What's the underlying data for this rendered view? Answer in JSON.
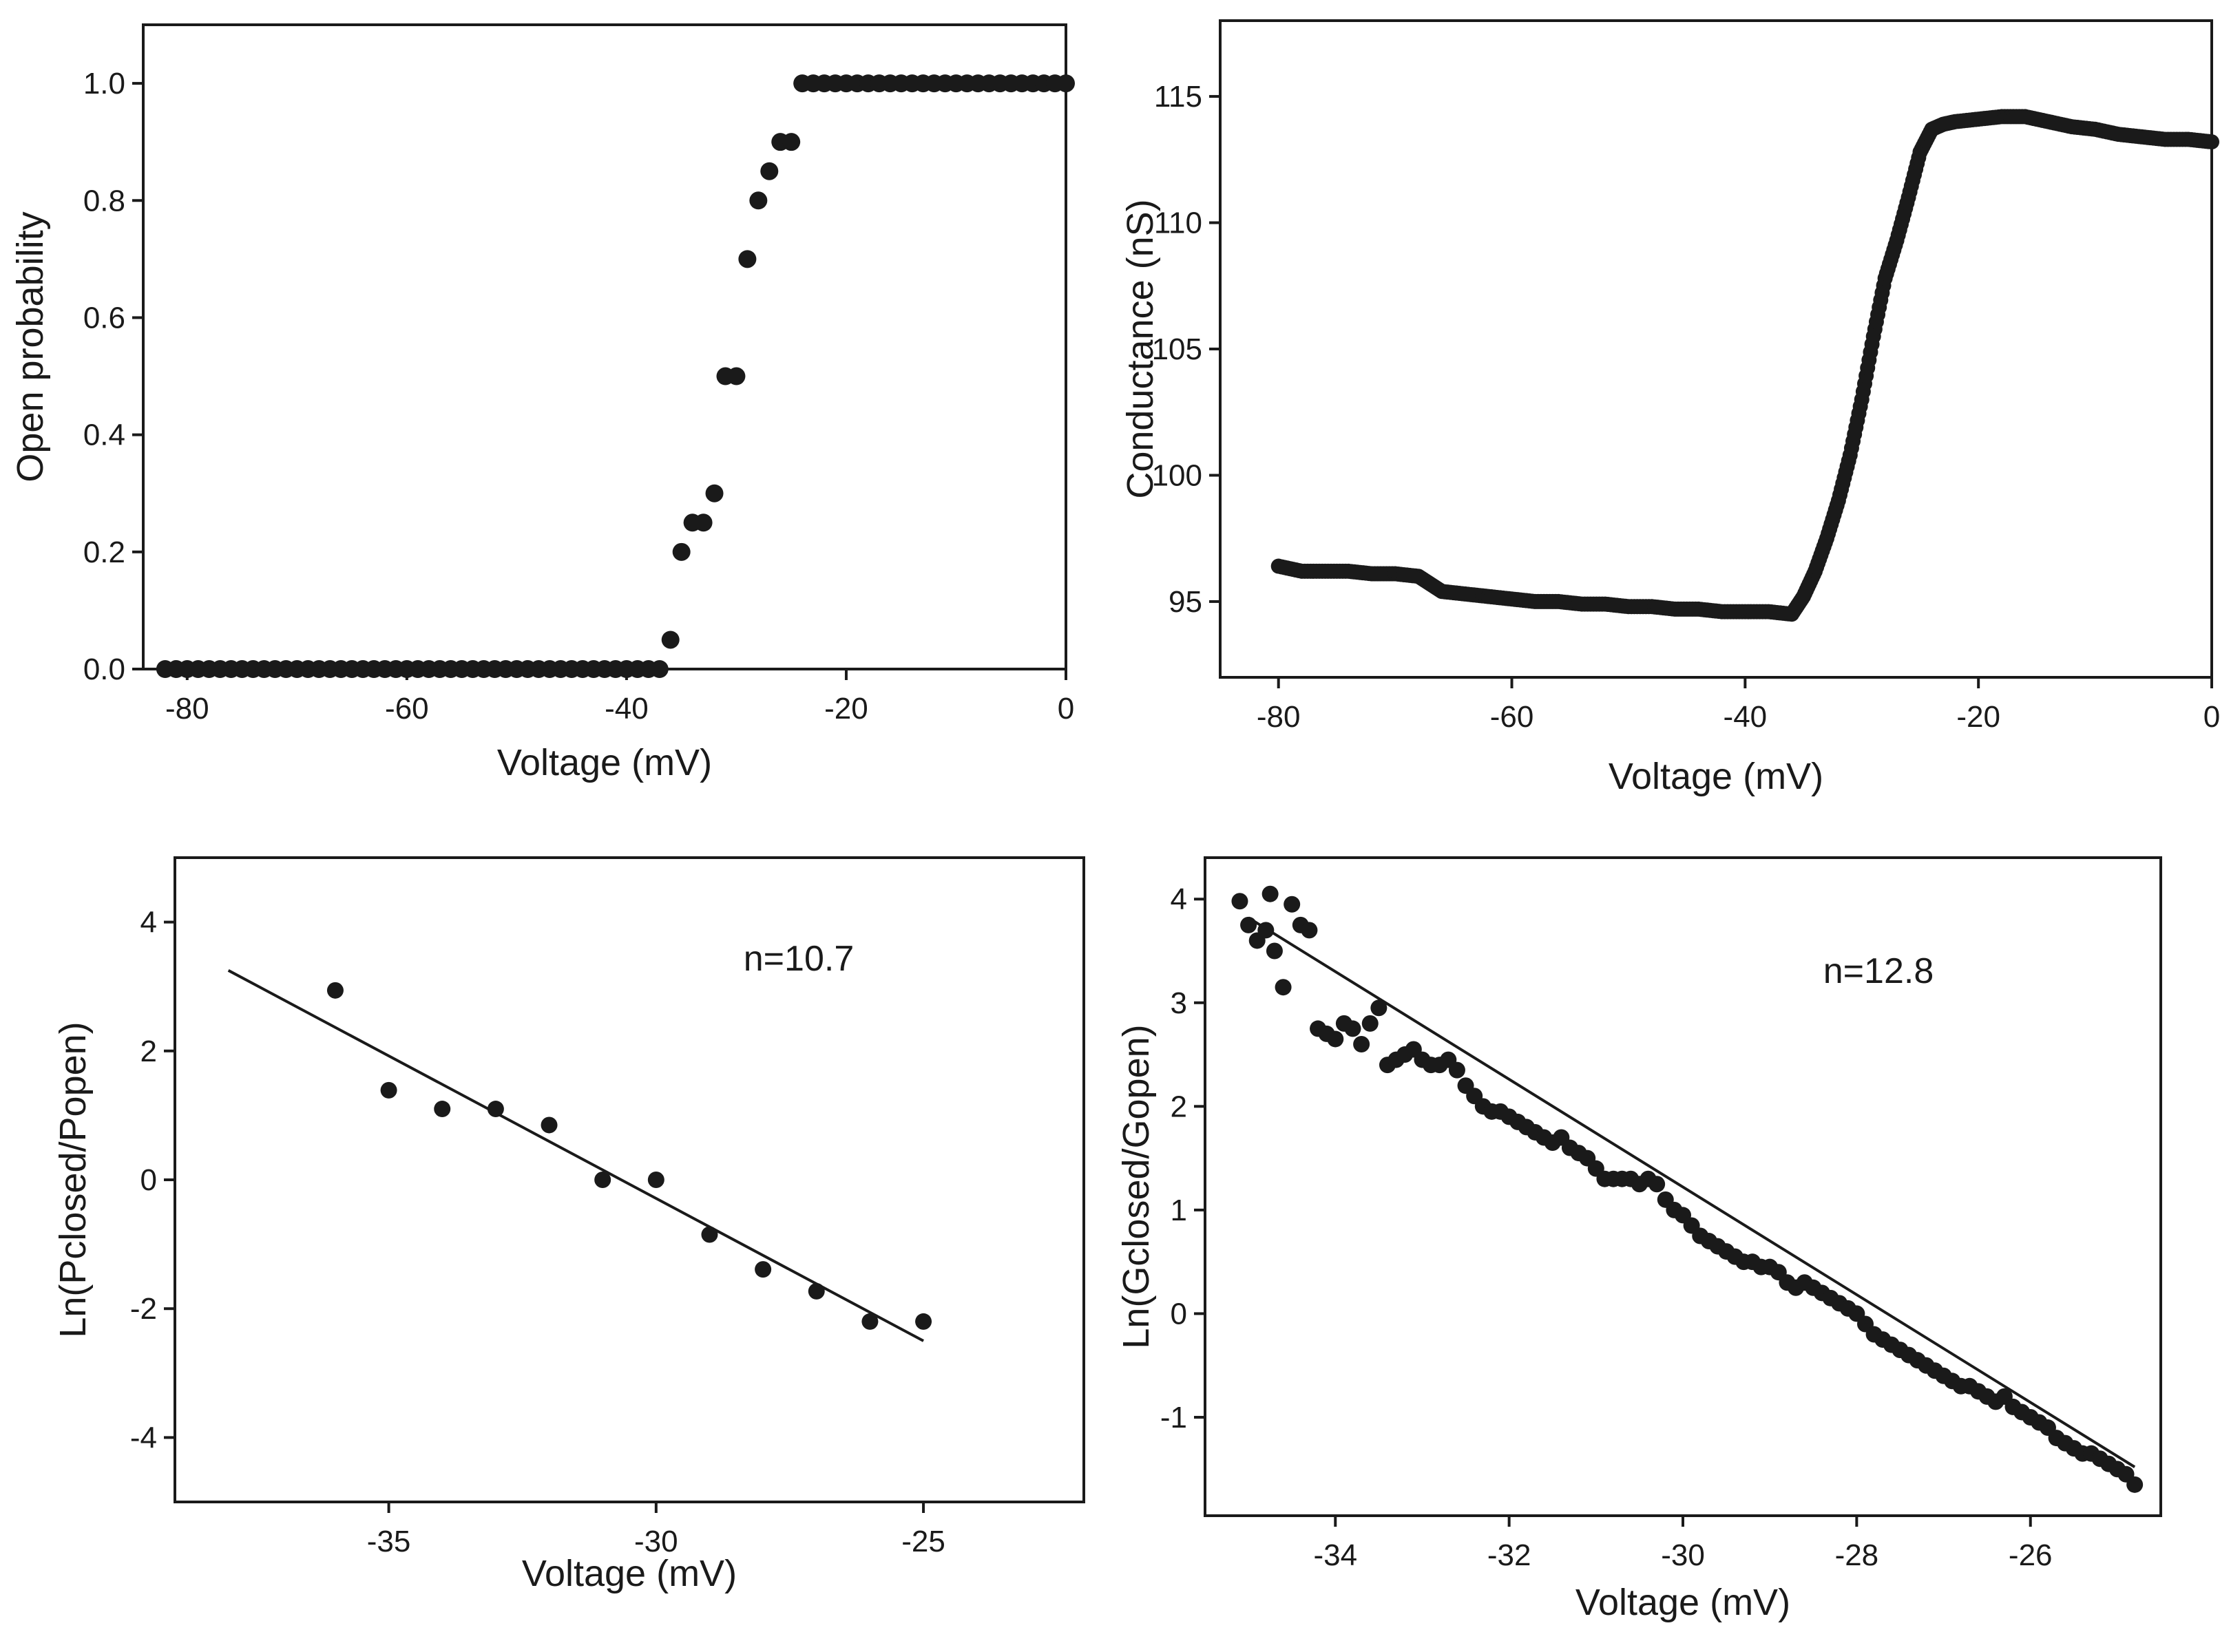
{
  "colors": {
    "ink": "#1a1a1a",
    "background": "#ffffff"
  },
  "chart_data": [
    {
      "id": "open-probability",
      "type": "scatter",
      "title": "",
      "xlabel": "Voltage (mV)",
      "ylabel": "Open probability",
      "xlim": [
        -84,
        0
      ],
      "ylim": [
        0,
        1.1
      ],
      "xticks": [
        -80,
        -60,
        -40,
        -20,
        0
      ],
      "yticks": [
        0.0,
        0.2,
        0.4,
        0.6,
        0.8,
        1.0
      ],
      "xtick_labels": [
        "-80",
        "-60",
        "-40",
        "-20",
        "0"
      ],
      "ytick_labels": [
        "0.0",
        "0.2",
        "0.4",
        "0.6",
        "0.8",
        "1.0"
      ],
      "grid": false,
      "annotation": "",
      "points_note": "every 1 mV from -82 to 0",
      "x": [
        -82,
        -81,
        -80,
        -79,
        -78,
        -77,
        -76,
        -75,
        -74,
        -73,
        -72,
        -71,
        -70,
        -69,
        -68,
        -67,
        -66,
        -65,
        -64,
        -63,
        -62,
        -61,
        -60,
        -59,
        -58,
        -57,
        -56,
        -55,
        -54,
        -53,
        -52,
        -51,
        -50,
        -49,
        -48,
        -47,
        -46,
        -45,
        -44,
        -43,
        -42,
        -41,
        -40,
        -39,
        -38,
        -37,
        -36,
        -35,
        -34,
        -33,
        -32,
        -31,
        -30,
        -29,
        -28,
        -27,
        -26,
        -25,
        -24,
        -23,
        -22,
        -21,
        -20,
        -19,
        -18,
        -17,
        -16,
        -15,
        -14,
        -13,
        -12,
        -11,
        -10,
        -9,
        -8,
        -7,
        -6,
        -5,
        -4,
        -3,
        -2,
        -1,
        0
      ],
      "y": [
        0,
        0,
        0,
        0,
        0,
        0,
        0,
        0,
        0,
        0,
        0,
        0,
        0,
        0,
        0,
        0,
        0,
        0,
        0,
        0,
        0,
        0,
        0,
        0,
        0,
        0,
        0,
        0,
        0,
        0,
        0,
        0,
        0,
        0,
        0,
        0,
        0,
        0,
        0,
        0,
        0,
        0,
        0,
        0,
        0,
        0,
        0.05,
        0.2,
        0.25,
        0.25,
        0.3,
        0.5,
        0.5,
        0.7,
        0.8,
        0.85,
        0.9,
        0.9,
        1,
        1,
        1,
        1,
        1,
        1,
        1,
        1,
        1,
        1,
        1,
        1,
        1,
        1,
        1,
        1,
        1,
        1,
        1,
        1,
        1,
        1,
        1,
        1,
        1
      ]
    },
    {
      "id": "conductance",
      "type": "scatter",
      "title": "",
      "xlabel": "Voltage (mV)",
      "ylabel": "Conductance (nS)",
      "xlim": [
        -85,
        0
      ],
      "ylim": [
        92,
        118
      ],
      "xticks": [
        -80,
        -60,
        -40,
        -20,
        0
      ],
      "yticks": [
        95,
        100,
        105,
        110,
        115
      ],
      "xtick_labels": [
        "-80",
        "-60",
        "-40",
        "-20",
        "0"
      ],
      "ytick_labels": [
        "95",
        "100",
        "105",
        "110",
        "115"
      ],
      "grid": false,
      "annotation": "",
      "x": [
        -80,
        -78,
        -76,
        -74,
        -72,
        -70,
        -68,
        -67,
        -66,
        -64,
        -62,
        -60,
        -58,
        -56,
        -54,
        -52,
        -50,
        -48,
        -46,
        -44,
        -42,
        -40,
        -38,
        -36,
        -35,
        -34,
        -33,
        -32,
        -31,
        -30,
        -29,
        -28,
        -27,
        -26,
        -25,
        -24,
        -23,
        -22,
        -20,
        -18,
        -16,
        -14,
        -12,
        -10,
        -8,
        -6,
        -4,
        -2,
        0
      ],
      "y": [
        96.4,
        96.2,
        96.2,
        96.2,
        96.1,
        96.1,
        96.0,
        95.7,
        95.4,
        95.3,
        95.2,
        95.1,
        95.0,
        95.0,
        94.9,
        94.9,
        94.8,
        94.8,
        94.7,
        94.7,
        94.6,
        94.6,
        94.6,
        94.5,
        95.2,
        96.2,
        97.5,
        99.0,
        100.8,
        103.0,
        105.5,
        107.8,
        109.3,
        111.0,
        112.8,
        113.7,
        113.9,
        114.0,
        114.1,
        114.2,
        114.2,
        114.0,
        113.8,
        113.7,
        113.5,
        113.4,
        113.3,
        113.3,
        113.2
      ]
    },
    {
      "id": "ln-p-ratio",
      "type": "scatter",
      "title": "",
      "xlabel": "Voltage (mV)",
      "ylabel": "Ln(Pclosed/Popen)",
      "xlim": [
        -39,
        -22
      ],
      "ylim": [
        -5,
        5
      ],
      "xticks": [
        -35,
        -30,
        -25
      ],
      "yticks": [
        -4,
        -2,
        0,
        2,
        4
      ],
      "xtick_labels": [
        "-35",
        "-30",
        "-25"
      ],
      "ytick_labels": [
        "-4",
        "-2",
        "0",
        "2",
        "4"
      ],
      "grid": false,
      "annotation": "n=10.7",
      "x": [
        -36,
        -35,
        -34,
        -33,
        -32,
        -31,
        -30,
        -29,
        -28,
        -27,
        -26,
        -25
      ],
      "y": [
        2.94,
        1.39,
        1.1,
        1.1,
        0.85,
        0.0,
        0.0,
        -0.85,
        -1.39,
        -1.73,
        -2.2,
        -2.2
      ],
      "fit": {
        "x": [
          -38,
          -25
        ],
        "y": [
          3.25,
          -2.5
        ]
      }
    },
    {
      "id": "ln-g-ratio",
      "type": "scatter",
      "title": "",
      "xlabel": "Voltage (mV)",
      "ylabel": "Ln(Gclosed/Gopen)",
      "xlim": [
        -35.5,
        -24.5
      ],
      "ylim": [
        -1.95,
        4.4
      ],
      "xticks": [
        -34,
        -32,
        -30,
        -28,
        -26
      ],
      "yticks": [
        -1,
        0,
        1,
        2,
        3,
        4
      ],
      "xtick_labels": [
        "-34",
        "-32",
        "-30",
        "-28",
        "-26"
      ],
      "ytick_labels": [
        "-1",
        "0",
        "1",
        "2",
        "3",
        "4"
      ],
      "grid": false,
      "annotation": "n=12.8",
      "x": [
        -35.1,
        -35.0,
        -34.9,
        -34.8,
        -34.75,
        -34.7,
        -34.6,
        -34.5,
        -34.4,
        -34.3,
        -34.2,
        -34.1,
        -34.0,
        -33.9,
        -33.8,
        -33.7,
        -33.6,
        -33.5,
        -33.4,
        -33.3,
        -33.2,
        -33.1,
        -33.0,
        -32.9,
        -32.8,
        -32.7,
        -32.6,
        -32.5,
        -32.4,
        -32.3,
        -32.2,
        -32.1,
        -32.0,
        -31.9,
        -31.8,
        -31.7,
        -31.6,
        -31.5,
        -31.4,
        -31.3,
        -31.2,
        -31.1,
        -31.0,
        -30.9,
        -30.8,
        -30.7,
        -30.6,
        -30.5,
        -30.4,
        -30.3,
        -30.2,
        -30.1,
        -30.0,
        -29.9,
        -29.8,
        -29.7,
        -29.6,
        -29.5,
        -29.4,
        -29.3,
        -29.2,
        -29.1,
        -29.0,
        -28.9,
        -28.8,
        -28.7,
        -28.6,
        -28.5,
        -28.4,
        -28.3,
        -28.2,
        -28.1,
        -28.0,
        -27.9,
        -27.8,
        -27.7,
        -27.6,
        -27.5,
        -27.4,
        -27.3,
        -27.2,
        -27.1,
        -27.0,
        -26.9,
        -26.8,
        -26.7,
        -26.6,
        -26.5,
        -26.4,
        -26.3,
        -26.2,
        -26.1,
        -26.0,
        -25.9,
        -25.8,
        -25.7,
        -25.6,
        -25.5,
        -25.4,
        -25.3,
        -25.2,
        -25.1,
        -25.0,
        -24.9,
        -24.8
      ],
      "y": [
        3.98,
        3.75,
        3.6,
        3.7,
        4.05,
        3.5,
        3.15,
        3.95,
        3.75,
        3.7,
        2.75,
        2.7,
        2.65,
        2.8,
        2.75,
        2.6,
        2.8,
        2.95,
        2.4,
        2.45,
        2.5,
        2.55,
        2.45,
        2.4,
        2.4,
        2.45,
        2.35,
        2.2,
        2.1,
        2.0,
        1.95,
        1.95,
        1.9,
        1.85,
        1.8,
        1.75,
        1.7,
        1.65,
        1.7,
        1.6,
        1.55,
        1.5,
        1.4,
        1.3,
        1.3,
        1.3,
        1.3,
        1.25,
        1.3,
        1.25,
        1.1,
        1.0,
        0.95,
        0.85,
        0.75,
        0.7,
        0.65,
        0.6,
        0.55,
        0.5,
        0.5,
        0.45,
        0.45,
        0.4,
        0.3,
        0.25,
        0.3,
        0.25,
        0.2,
        0.15,
        0.1,
        0.05,
        0.0,
        -0.1,
        -0.2,
        -0.25,
        -0.3,
        -0.35,
        -0.4,
        -0.45,
        -0.5,
        -0.55,
        -0.6,
        -0.65,
        -0.7,
        -0.7,
        -0.75,
        -0.8,
        -0.85,
        -0.8,
        -0.9,
        -0.95,
        -1.0,
        -1.05,
        -1.1,
        -1.2,
        -1.25,
        -1.3,
        -1.35,
        -1.35,
        -1.4,
        -1.45,
        -1.5,
        -1.55,
        -1.65
      ],
      "fit": {
        "x": [
          -35.0,
          -24.8
        ],
        "y": [
          3.82,
          -1.48
        ]
      }
    }
  ]
}
